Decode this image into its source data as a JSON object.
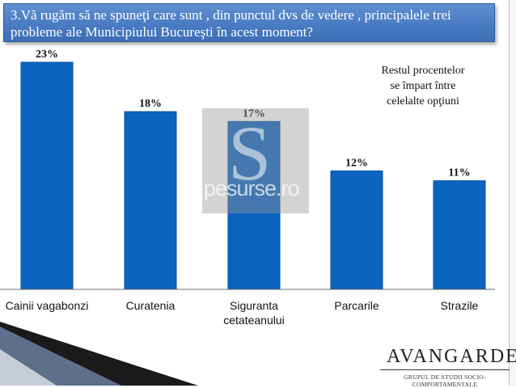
{
  "title": "3.Vă rugăm să ne spuneţi care sunt , din punctul dvs de vedere , principalele trei probleme ale Municipiului Bucureşti  în acest moment?",
  "note": [
    "Restul procentelor",
    "se împart între",
    "celelalte opţiuni"
  ],
  "watermark": {
    "letter": "S",
    "text": "pesurse.ro"
  },
  "brand": {
    "name": "AVANGARDE",
    "tagline": "GRUPUL DE STUDII SOCIO-COMPORTAMENTALE"
  },
  "colors": {
    "bar": "#0b63c0",
    "title_bg": "#4a7cc4"
  },
  "chart_data": {
    "type": "bar",
    "categories": [
      "Cainii vagabonzi",
      "Curatenia",
      "Siguranta cetateanului",
      "Parcarile",
      "Strazile"
    ],
    "category_lines": [
      [
        "Cainii vagabonzi"
      ],
      [
        "Curatenia"
      ],
      [
        "Siguranta",
        "cetateanului"
      ],
      [
        "Parcarile"
      ],
      [
        "Strazile"
      ]
    ],
    "values": [
      23,
      18,
      17,
      12,
      11
    ],
    "value_labels": [
      "23%",
      "18%",
      "17%",
      "12%",
      "11%"
    ],
    "ylim": [
      0,
      25
    ],
    "grid": false,
    "legend": "none"
  }
}
